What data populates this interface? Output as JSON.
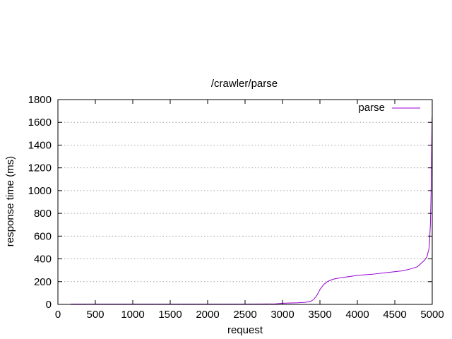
{
  "chart_data": {
    "type": "line",
    "title": "/crawler/parse",
    "xlabel": "request",
    "ylabel": "response time (ms)",
    "xlim": [
      0,
      5000
    ],
    "ylim": [
      0,
      1800
    ],
    "x_ticks": [
      0,
      500,
      1000,
      1500,
      2000,
      2500,
      3000,
      3500,
      4000,
      4500,
      5000
    ],
    "y_ticks": [
      0,
      200,
      400,
      600,
      800,
      1000,
      1200,
      1400,
      1600,
      1800
    ],
    "grid": "horizontal dotted",
    "legend_position": "top-right",
    "series": [
      {
        "name": "parse",
        "color": "#9400d3",
        "x": [
          170,
          500,
          1000,
          1500,
          2000,
          2500,
          2900,
          3000,
          3200,
          3300,
          3380,
          3420,
          3460,
          3500,
          3550,
          3600,
          3650,
          3700,
          3800,
          3900,
          4000,
          4200,
          4400,
          4600,
          4700,
          4800,
          4850,
          4900,
          4930,
          4960,
          4975,
          4985,
          4992,
          4998
        ],
        "y": [
          3,
          3,
          3,
          3,
          3,
          3,
          4,
          10,
          14,
          18,
          28,
          45,
          80,
          130,
          175,
          200,
          215,
          225,
          237,
          245,
          255,
          265,
          280,
          295,
          310,
          330,
          360,
          390,
          420,
          500,
          700,
          1000,
          1350,
          1650
        ]
      }
    ]
  }
}
